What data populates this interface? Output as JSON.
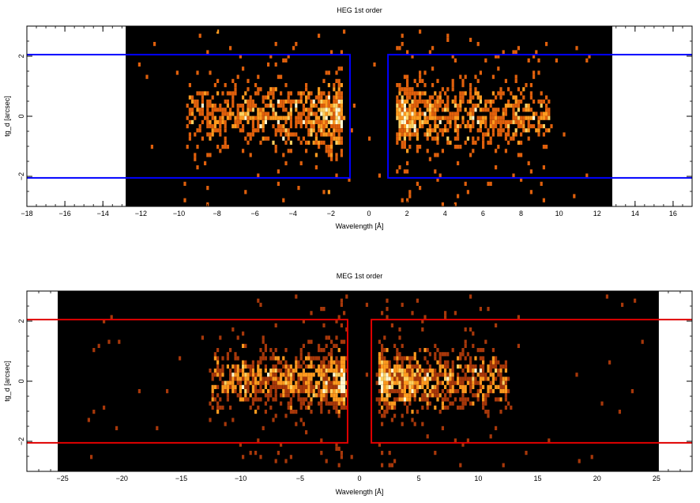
{
  "chart_data": [
    {
      "type": "heatmap",
      "title": "HEG 1st order",
      "xlabel": "Wavelength [Å]",
      "ylabel": "tg_d [arcsec]",
      "xlim": [
        -18,
        17
      ],
      "ylim": [
        -3,
        3
      ],
      "data_range_x": [
        -12.8,
        12.8
      ],
      "x_ticks": [
        -18,
        -16,
        -14,
        -12,
        -10,
        -8,
        -6,
        -4,
        -2,
        0,
        2,
        4,
        6,
        8,
        10,
        12,
        14,
        16
      ],
      "x_tick_labels": [
        "−18",
        "−16",
        "−14",
        "−12",
        "−10",
        "−8",
        "−6",
        "−4",
        "−2",
        "0",
        "2",
        "4",
        "6",
        "8",
        "10",
        "12",
        "14",
        "16"
      ],
      "y_ticks": [
        -2,
        0,
        2
      ],
      "y_tick_labels": [
        "−2",
        "0",
        "2"
      ],
      "x_minor_step": 0.5,
      "background_color": "#000000",
      "colormap": [
        "#5a1400",
        "#a8380a",
        "#e0600c",
        "#ff9a1e",
        "#ffd060",
        "#fff8d0"
      ],
      "box_color": "#0000ff",
      "regions": [
        {
          "xmin": -100,
          "xmax": -1.0,
          "ymin": -2.05,
          "ymax": 2.05
        },
        {
          "xmin": 1.0,
          "xmax": 100,
          "ymin": -2.05,
          "ymax": 2.05
        }
      ],
      "clusters": [
        {
          "xmin": -9.5,
          "xmax": -1.5,
          "peak_x": -2.2,
          "sigma_y": 0.42,
          "n": 780
        },
        {
          "xmin": 1.6,
          "xmax": 9.5,
          "peak_x": 2.6,
          "sigma_y": 0.42,
          "n": 780
        }
      ]
    },
    {
      "type": "heatmap",
      "title": "MEG 1st order",
      "xlabel": "Wavelength [Å]",
      "ylabel": "tg_d [arcsec]",
      "xlim": [
        -28,
        28
      ],
      "ylim": [
        -3,
        3
      ],
      "data_range_x": [
        -25.4,
        25.2
      ],
      "x_ticks": [
        -25,
        -20,
        -15,
        -10,
        -5,
        0,
        5,
        10,
        15,
        20,
        25
      ],
      "x_tick_labels": [
        "−25",
        "−20",
        "−15",
        "−10",
        "−5",
        "0",
        "5",
        "10",
        "15",
        "20",
        "25"
      ],
      "y_ticks": [
        -2,
        0,
        2
      ],
      "y_tick_labels": [
        "−2",
        "0",
        "2"
      ],
      "x_minor_step": 1,
      "background_color": "#000000",
      "colormap": [
        "#5a1400",
        "#a8380a",
        "#e0600c",
        "#ff9a1e",
        "#ffd060",
        "#fff8d0"
      ],
      "box_color": "#e00000",
      "regions": [
        {
          "xmin": -100,
          "xmax": -1.0,
          "ymin": -2.05,
          "ymax": 2.05
        },
        {
          "xmin": 1.0,
          "xmax": 100,
          "ymin": -2.05,
          "ymax": 2.05
        }
      ],
      "clusters": [
        {
          "xmin": -12.5,
          "xmax": -1.2,
          "peak_x": -3.0,
          "sigma_y": 0.38,
          "n": 900
        },
        {
          "xmin": 1.8,
          "xmax": 12.5,
          "peak_x": 3.0,
          "sigma_y": 0.38,
          "n": 900
        }
      ]
    }
  ]
}
